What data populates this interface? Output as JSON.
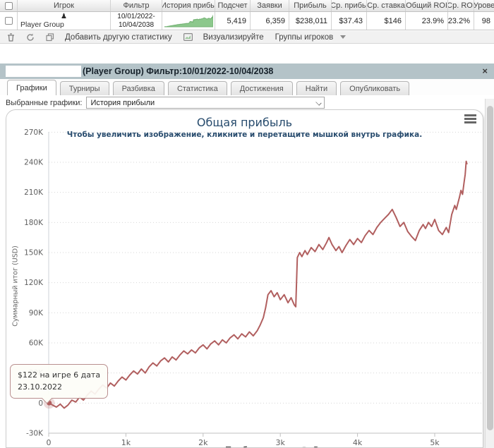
{
  "table": {
    "columns": [
      "Игрок",
      "Фильтр",
      "История прибы",
      "Подсчет",
      "Заявки",
      "Прибыль",
      "Ср. прибы",
      "Ср. ставка",
      "Общий ROI",
      "Ср. ROI",
      "Урове"
    ],
    "row": {
      "player": "Player Group",
      "filter_line1": "10/01/2022-",
      "filter_line2": "10/04/2038",
      "count": "5,419",
      "entries": "6,359",
      "profit": "$238,011",
      "avg_profit": "$37.43",
      "avg_stake": "$146",
      "total_roi": "23.9%",
      "avg_roi": "23.2%",
      "level": "98"
    }
  },
  "toolbar": {
    "add_stat": "Добавить другую статистику",
    "visualize": "Визуализируйте",
    "player_groups": "Группы игроков"
  },
  "panel": {
    "title": "(Player Group) Фильтр:10/01/2022-10/04/2038",
    "close": "×"
  },
  "tabs": [
    "Графики",
    "Турниры",
    "Разбивка",
    "Статистика",
    "Достижения",
    "Найти",
    "Опубликовать"
  ],
  "chart_select": {
    "label": "Выбранные графики:",
    "value": "История прибыли"
  },
  "chart_data": {
    "type": "line",
    "title": "Общая прибыль",
    "subtitle": "Чтобы увеличить изображение, кликните и перетащите мышкой внутрь графика.",
    "y_axis": {
      "title": "Суммарный итог (USD)",
      "unit": "thousand USD",
      "range": [
        -30,
        270
      ],
      "ticks": [
        {
          "value": -30,
          "label": "-30K"
        },
        {
          "value": 0,
          "label": "0"
        },
        {
          "value": 30,
          "label": "30K"
        },
        {
          "value": 60,
          "label": "60K"
        },
        {
          "value": 90,
          "label": "90K"
        },
        {
          "value": 120,
          "label": "120K"
        },
        {
          "value": 150,
          "label": "150K"
        },
        {
          "value": 180,
          "label": "180K"
        },
        {
          "value": 210,
          "label": "210K"
        },
        {
          "value": 240,
          "label": "240K"
        },
        {
          "value": 270,
          "label": "270K"
        }
      ]
    },
    "x_axis": {
      "unit": "games",
      "range": [
        0,
        5610
      ],
      "ticks": [
        {
          "value": 0,
          "label": "0"
        },
        {
          "value": 1000,
          "label": "1k"
        },
        {
          "value": 2000,
          "label": "2k"
        },
        {
          "value": 3000,
          "label": "3k"
        },
        {
          "value": 4000,
          "label": "4k"
        },
        {
          "value": 5000,
          "label": "5k"
        }
      ]
    },
    "grid": "dotted horizontal gridlines, white plot background",
    "legend_position": "bottom (clipped by viewport)",
    "legend": [
      {
        "label": "Прибыль",
        "color": "#b15f5f",
        "active": true
      },
      {
        "label": "Заявки",
        "color": "#c9c9c9",
        "active": false
      }
    ],
    "tooltip": {
      "line1": "$122 на игре 6 дата",
      "line2": "23.10.2022",
      "point": {
        "game": 6,
        "profit_usd": 122,
        "date": "23.10.2022"
      }
    },
    "series": [
      {
        "name": "Прибыль",
        "color": "#b15f5f",
        "units": "[games, profit in thousands USD]",
        "points": [
          [
            6,
            0.122
          ],
          [
            50,
            -2
          ],
          [
            100,
            -4
          ],
          [
            150,
            -1
          ],
          [
            200,
            -5
          ],
          [
            250,
            -2
          ],
          [
            300,
            3
          ],
          [
            350,
            1
          ],
          [
            400,
            6
          ],
          [
            450,
            3
          ],
          [
            500,
            8
          ],
          [
            550,
            12
          ],
          [
            600,
            9
          ],
          [
            650,
            14
          ],
          [
            700,
            18
          ],
          [
            750,
            15
          ],
          [
            800,
            20
          ],
          [
            850,
            17
          ],
          [
            900,
            22
          ],
          [
            950,
            26
          ],
          [
            1000,
            23
          ],
          [
            1050,
            28
          ],
          [
            1100,
            32
          ],
          [
            1150,
            29
          ],
          [
            1200,
            34
          ],
          [
            1250,
            30
          ],
          [
            1300,
            36
          ],
          [
            1350,
            40
          ],
          [
            1400,
            37
          ],
          [
            1450,
            42
          ],
          [
            1500,
            45
          ],
          [
            1550,
            41
          ],
          [
            1600,
            46
          ],
          [
            1650,
            43
          ],
          [
            1700,
            48
          ],
          [
            1750,
            52
          ],
          [
            1800,
            49
          ],
          [
            1850,
            53
          ],
          [
            1900,
            50
          ],
          [
            1950,
            55
          ],
          [
            2000,
            58
          ],
          [
            2050,
            54
          ],
          [
            2100,
            59
          ],
          [
            2150,
            62
          ],
          [
            2200,
            58
          ],
          [
            2250,
            63
          ],
          [
            2300,
            60
          ],
          [
            2350,
            65
          ],
          [
            2400,
            68
          ],
          [
            2450,
            64
          ],
          [
            2500,
            69
          ],
          [
            2550,
            66
          ],
          [
            2600,
            71
          ],
          [
            2650,
            67
          ],
          [
            2700,
            72
          ],
          [
            2740,
            78
          ],
          [
            2780,
            85
          ],
          [
            2810,
            95
          ],
          [
            2840,
            108
          ],
          [
            2880,
            112
          ],
          [
            2920,
            106
          ],
          [
            2960,
            110
          ],
          [
            3000,
            103
          ],
          [
            3050,
            108
          ],
          [
            3100,
            100
          ],
          [
            3140,
            105
          ],
          [
            3180,
            98
          ],
          [
            3200,
            96
          ],
          [
            3220,
            145
          ],
          [
            3250,
            150
          ],
          [
            3280,
            146
          ],
          [
            3320,
            152
          ],
          [
            3350,
            148
          ],
          [
            3400,
            155
          ],
          [
            3450,
            151
          ],
          [
            3500,
            158
          ],
          [
            3550,
            153
          ],
          [
            3600,
            160
          ],
          [
            3630,
            165
          ],
          [
            3670,
            158
          ],
          [
            3720,
            152
          ],
          [
            3760,
            156
          ],
          [
            3800,
            150
          ],
          [
            3850,
            157
          ],
          [
            3900,
            163
          ],
          [
            3950,
            158
          ],
          [
            4000,
            164
          ],
          [
            4050,
            160
          ],
          [
            4100,
            167
          ],
          [
            4150,
            172
          ],
          [
            4200,
            168
          ],
          [
            4250,
            175
          ],
          [
            4300,
            180
          ],
          [
            4350,
            184
          ],
          [
            4400,
            188
          ],
          [
            4450,
            193
          ],
          [
            4500,
            185
          ],
          [
            4550,
            176
          ],
          [
            4600,
            180
          ],
          [
            4650,
            171
          ],
          [
            4700,
            166
          ],
          [
            4750,
            162
          ],
          [
            4800,
            172
          ],
          [
            4850,
            178
          ],
          [
            4880,
            174
          ],
          [
            4920,
            180
          ],
          [
            4960,
            176
          ],
          [
            5000,
            183
          ],
          [
            5050,
            172
          ],
          [
            5100,
            168
          ],
          [
            5150,
            175
          ],
          [
            5180,
            170
          ],
          [
            5220,
            188
          ],
          [
            5260,
            197
          ],
          [
            5280,
            193
          ],
          [
            5320,
            205
          ],
          [
            5340,
            212
          ],
          [
            5360,
            208
          ],
          [
            5380,
            220
          ],
          [
            5395,
            228
          ],
          [
            5408,
            241
          ],
          [
            5419,
            238
          ]
        ]
      }
    ]
  }
}
